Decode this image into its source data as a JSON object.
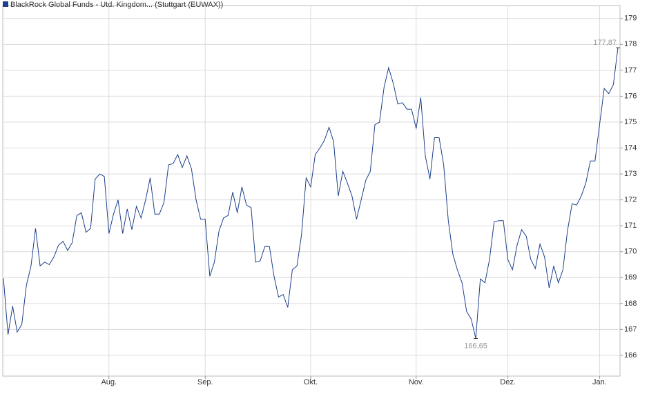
{
  "chart_data": {
    "type": "line",
    "series": [
      {
        "name": "BlackRock Global Funds - Utd. Kingdom... (Stuttgart (EUWAX))",
        "color": "#1b3f8b",
        "values": [
          168.97,
          166.8,
          167.9,
          166.9,
          167.2,
          168.7,
          169.45,
          170.9,
          169.45,
          169.6,
          169.5,
          169.8,
          170.25,
          170.4,
          170.05,
          170.35,
          171.4,
          171.5,
          170.75,
          170.9,
          172.8,
          173.0,
          172.9,
          170.7,
          171.45,
          172.0,
          170.7,
          171.65,
          170.85,
          171.75,
          171.3,
          172.0,
          172.85,
          171.45,
          171.45,
          171.9,
          173.35,
          173.4,
          173.75,
          173.25,
          173.7,
          173.2,
          172.0,
          171.25,
          171.25,
          169.05,
          169.6,
          170.8,
          171.3,
          171.4,
          172.3,
          171.5,
          172.5,
          171.8,
          171.7,
          169.6,
          169.65,
          170.2,
          170.2,
          169.05,
          168.25,
          168.35,
          167.85,
          169.3,
          169.45,
          170.65,
          172.85,
          172.5,
          173.75,
          174.0,
          174.3,
          174.8,
          174.25,
          172.15,
          173.1,
          172.65,
          172.15,
          171.25,
          172.0,
          172.75,
          173.1,
          174.9,
          175.0,
          176.35,
          177.1,
          176.5,
          175.7,
          175.75,
          175.5,
          175.5,
          174.75,
          175.95,
          173.7,
          172.8,
          174.4,
          174.4,
          173.35,
          171.2,
          169.9,
          169.3,
          168.8,
          167.7,
          167.4,
          166.65,
          168.95,
          168.8,
          169.7,
          171.15,
          171.2,
          171.2,
          169.7,
          169.3,
          170.25,
          170.85,
          170.6,
          169.7,
          169.35,
          170.3,
          169.8,
          168.6,
          169.45,
          168.8,
          169.3,
          170.8,
          171.85,
          171.8,
          172.15,
          172.65,
          173.5,
          173.5,
          174.9,
          176.3,
          176.1,
          176.45,
          177.87
        ],
        "value_labels": [
          null,
          null,
          null,
          null,
          null,
          null,
          null,
          null,
          null,
          null,
          null,
          null,
          null,
          null,
          null,
          null,
          null,
          null,
          null,
          null,
          null,
          null,
          null,
          null,
          null,
          null,
          null,
          null,
          null,
          null,
          null,
          null,
          null,
          null,
          null,
          null,
          null,
          null,
          null,
          null,
          null,
          null,
          null,
          null,
          null,
          null,
          null,
          null,
          null,
          null,
          null,
          null,
          null,
          null,
          null,
          null,
          null,
          null,
          null,
          null,
          null,
          null,
          null,
          null,
          null,
          null,
          null,
          null,
          null,
          null,
          null,
          null,
          null,
          null,
          null,
          null,
          null,
          null,
          null,
          null,
          null,
          null,
          null,
          null,
          null,
          null,
          null,
          null,
          null,
          null,
          null,
          null,
          null,
          null,
          null,
          null,
          null,
          null,
          null,
          null,
          null,
          null,
          null,
          "166,65",
          null,
          null,
          null,
          null,
          null,
          null,
          null,
          null,
          null,
          null,
          null,
          null,
          null,
          null,
          null,
          null,
          null,
          null,
          null,
          null,
          null,
          null,
          null,
          null,
          null,
          null,
          null,
          null,
          null,
          null,
          "177,87"
        ]
      }
    ],
    "categories": [
      null,
      null,
      null,
      null,
      null,
      null,
      null,
      null,
      null,
      null,
      null,
      null,
      null,
      null,
      null,
      null,
      null,
      null,
      null,
      null,
      null,
      null,
      null,
      "Aug.",
      null,
      null,
      null,
      null,
      null,
      null,
      null,
      null,
      null,
      null,
      null,
      null,
      null,
      null,
      null,
      null,
      null,
      null,
      null,
      null,
      "Sep.",
      null,
      null,
      null,
      null,
      null,
      null,
      null,
      null,
      null,
      null,
      null,
      null,
      null,
      null,
      null,
      null,
      null,
      null,
      null,
      null,
      null,
      null,
      "Okt.",
      null,
      null,
      null,
      null,
      null,
      null,
      null,
      null,
      null,
      null,
      null,
      null,
      null,
      null,
      null,
      null,
      null,
      null,
      null,
      null,
      null,
      null,
      "Nov.",
      null,
      null,
      null,
      null,
      null,
      null,
      null,
      null,
      null,
      null,
      null,
      null,
      null,
      null,
      null,
      null,
      null,
      null,
      null,
      "Dez.",
      null,
      null,
      null,
      null,
      null,
      null,
      null,
      null,
      null,
      null,
      null,
      null,
      null,
      null,
      null,
      null,
      null,
      null,
      null,
      "Jan.",
      null,
      null,
      null,
      null
    ],
    "ylim": [
      165.2,
      179.5
    ],
    "yticks": [
      166,
      167,
      168,
      169,
      170,
      171,
      172,
      173,
      174,
      175,
      176,
      177,
      178,
      179
    ],
    "grid": true
  }
}
